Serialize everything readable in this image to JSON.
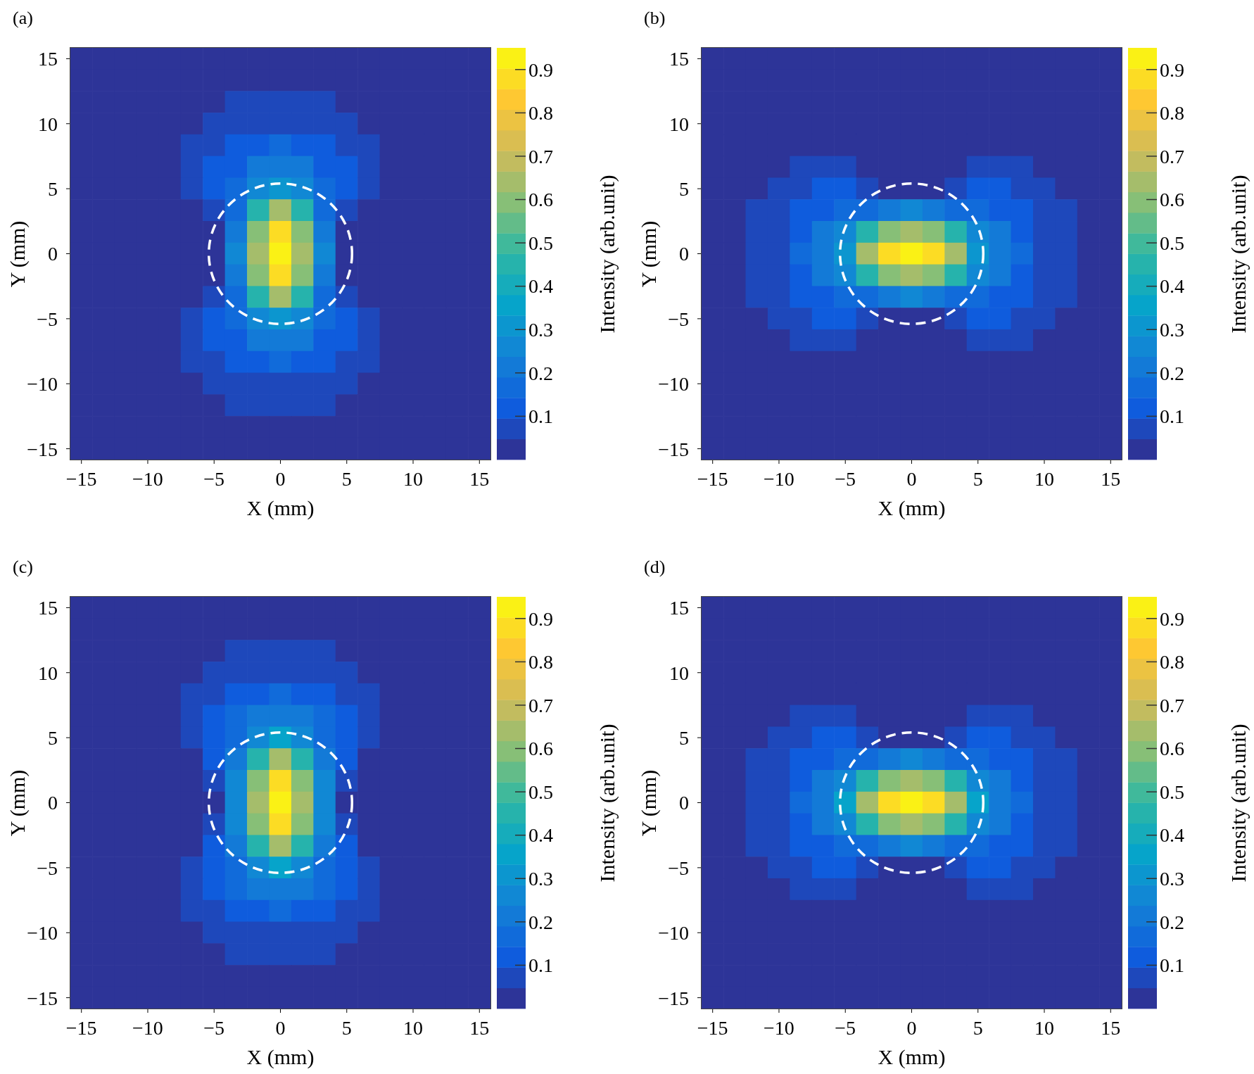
{
  "chart_data": [
    {
      "type": "heatmap",
      "title": "(a)",
      "xlabel": "X (mm)",
      "ylabel": "Y (mm)",
      "clabel": "Intensity (arb.unit)",
      "categories": [
        "−15",
        null,
        null,
        "−10",
        null,
        null,
        "−5",
        null,
        null,
        "0",
        null,
        null,
        "5",
        null,
        null,
        "10",
        null,
        null,
        "15"
      ],
      "y_categories": [
        "15",
        null,
        null,
        "10",
        null,
        null,
        "5",
        null,
        null,
        "0",
        null,
        null,
        "−5",
        null,
        null,
        "−10",
        null,
        null,
        "−15"
      ],
      "cells": [
        [
          0.02,
          0.02,
          0.02,
          0.02,
          0.02,
          0.02,
          0.02,
          0.02,
          0.02,
          0.02,
          0.02,
          0.02,
          0.02,
          0.02,
          0.02,
          0.02,
          0.02,
          0.02,
          0.02
        ],
        [
          0.02,
          0.02,
          0.02,
          0.02,
          0.02,
          0.02,
          0.02,
          0.02,
          0.02,
          0.02,
          0.02,
          0.02,
          0.02,
          0.02,
          0.02,
          0.02,
          0.02,
          0.02,
          0.02
        ],
        [
          0.02,
          0.02,
          0.02,
          0.02,
          0.02,
          0.02,
          0.02,
          0.05,
          0.06,
          0.06,
          0.06,
          0.05,
          0.02,
          0.02,
          0.02,
          0.02,
          0.02,
          0.02,
          0.02
        ],
        [
          0.02,
          0.02,
          0.02,
          0.02,
          0.02,
          0.02,
          0.06,
          0.08,
          0.09,
          0.09,
          0.09,
          0.08,
          0.06,
          0.02,
          0.02,
          0.02,
          0.02,
          0.02,
          0.02
        ],
        [
          0.02,
          0.02,
          0.02,
          0.02,
          0.02,
          0.06,
          0.08,
          0.11,
          0.14,
          0.15,
          0.14,
          0.11,
          0.08,
          0.06,
          0.02,
          0.02,
          0.02,
          0.02,
          0.02
        ],
        [
          0.02,
          0.02,
          0.02,
          0.02,
          0.02,
          0.06,
          0.1,
          0.14,
          0.19,
          0.21,
          0.19,
          0.14,
          0.1,
          0.06,
          0.02,
          0.02,
          0.02,
          0.02,
          0.02
        ],
        [
          0.02,
          0.02,
          0.02,
          0.02,
          0.02,
          0.05,
          0.1,
          0.16,
          0.25,
          0.33,
          0.25,
          0.16,
          0.1,
          0.05,
          0.02,
          0.02,
          0.02,
          0.02,
          0.02
        ],
        [
          0.02,
          0.02,
          0.02,
          0.02,
          0.02,
          0.02,
          0.09,
          0.18,
          0.45,
          0.63,
          0.45,
          0.18,
          0.09,
          0.02,
          0.02,
          0.02,
          0.02,
          0.02,
          0.02
        ],
        [
          0.02,
          0.02,
          0.02,
          0.02,
          0.02,
          0.02,
          0.04,
          0.23,
          0.6,
          0.87,
          0.6,
          0.23,
          0.04,
          0.02,
          0.02,
          0.02,
          0.02,
          0.02,
          0.02
        ],
        [
          0.02,
          0.02,
          0.02,
          0.02,
          0.02,
          0.02,
          0.03,
          0.25,
          0.65,
          0.95,
          0.65,
          0.25,
          0.03,
          0.02,
          0.02,
          0.02,
          0.02,
          0.02,
          0.02
        ],
        [
          0.02,
          0.02,
          0.02,
          0.02,
          0.02,
          0.02,
          0.04,
          0.23,
          0.6,
          0.87,
          0.6,
          0.23,
          0.04,
          0.02,
          0.02,
          0.02,
          0.02,
          0.02,
          0.02
        ],
        [
          0.02,
          0.02,
          0.02,
          0.02,
          0.02,
          0.02,
          0.09,
          0.18,
          0.45,
          0.63,
          0.45,
          0.18,
          0.09,
          0.02,
          0.02,
          0.02,
          0.02,
          0.02,
          0.02
        ],
        [
          0.02,
          0.02,
          0.02,
          0.02,
          0.02,
          0.05,
          0.1,
          0.16,
          0.25,
          0.33,
          0.25,
          0.16,
          0.1,
          0.05,
          0.02,
          0.02,
          0.02,
          0.02,
          0.02
        ],
        [
          0.02,
          0.02,
          0.02,
          0.02,
          0.02,
          0.06,
          0.1,
          0.14,
          0.19,
          0.21,
          0.19,
          0.14,
          0.1,
          0.06,
          0.02,
          0.02,
          0.02,
          0.02,
          0.02
        ],
        [
          0.02,
          0.02,
          0.02,
          0.02,
          0.02,
          0.06,
          0.08,
          0.11,
          0.14,
          0.15,
          0.14,
          0.11,
          0.08,
          0.06,
          0.02,
          0.02,
          0.02,
          0.02,
          0.02
        ],
        [
          0.02,
          0.02,
          0.02,
          0.02,
          0.02,
          0.02,
          0.06,
          0.08,
          0.09,
          0.09,
          0.09,
          0.08,
          0.06,
          0.02,
          0.02,
          0.02,
          0.02,
          0.02,
          0.02
        ],
        [
          0.02,
          0.02,
          0.02,
          0.02,
          0.02,
          0.02,
          0.02,
          0.05,
          0.06,
          0.06,
          0.06,
          0.05,
          0.02,
          0.02,
          0.02,
          0.02,
          0.02,
          0.02,
          0.02
        ],
        [
          0.02,
          0.02,
          0.02,
          0.02,
          0.02,
          0.02,
          0.02,
          0.02,
          0.02,
          0.02,
          0.02,
          0.02,
          0.02,
          0.02,
          0.02,
          0.02,
          0.02,
          0.02,
          0.02
        ],
        [
          0.02,
          0.02,
          0.02,
          0.02,
          0.02,
          0.02,
          0.02,
          0.02,
          0.02,
          0.02,
          0.02,
          0.02,
          0.02,
          0.02,
          0.02,
          0.02,
          0.02,
          0.02,
          0.02
        ]
      ],
      "clim": [
        0,
        0.95
      ],
      "cticks": [
        0.1,
        0.2,
        0.3,
        0.4,
        0.5,
        0.6,
        0.7,
        0.8,
        0.9
      ]
    },
    {
      "type": "heatmap",
      "title": "(b)",
      "xlabel": "X (mm)",
      "ylabel": "Y (mm)",
      "clabel": "Intensity (arb.unit)",
      "categories": [
        "−15",
        null,
        null,
        "−10",
        null,
        null,
        "−5",
        null,
        null,
        "0",
        null,
        null,
        "5",
        null,
        null,
        "10",
        null,
        null,
        "15"
      ],
      "y_categories": [
        "15",
        null,
        null,
        "10",
        null,
        null,
        "5",
        null,
        null,
        "0",
        null,
        null,
        "−5",
        null,
        null,
        "−10",
        null,
        null,
        "−15"
      ],
      "cells": [
        [
          0.02,
          0.02,
          0.02,
          0.02,
          0.02,
          0.02,
          0.02,
          0.02,
          0.02,
          0.02,
          0.02,
          0.02,
          0.02,
          0.02,
          0.02,
          0.02,
          0.02,
          0.02,
          0.02
        ],
        [
          0.02,
          0.02,
          0.02,
          0.02,
          0.02,
          0.02,
          0.02,
          0.02,
          0.02,
          0.02,
          0.02,
          0.02,
          0.02,
          0.02,
          0.02,
          0.02,
          0.02,
          0.02,
          0.02
        ],
        [
          0.02,
          0.02,
          0.02,
          0.02,
          0.02,
          0.02,
          0.02,
          0.02,
          0.02,
          0.02,
          0.02,
          0.02,
          0.02,
          0.02,
          0.02,
          0.02,
          0.02,
          0.02,
          0.02
        ],
        [
          0.02,
          0.02,
          0.02,
          0.02,
          0.02,
          0.02,
          0.02,
          0.02,
          0.02,
          0.02,
          0.02,
          0.02,
          0.02,
          0.02,
          0.02,
          0.02,
          0.02,
          0.02,
          0.02
        ],
        [
          0.02,
          0.02,
          0.02,
          0.02,
          0.02,
          0.02,
          0.02,
          0.02,
          0.02,
          0.02,
          0.02,
          0.02,
          0.02,
          0.02,
          0.02,
          0.02,
          0.02,
          0.02,
          0.02
        ],
        [
          0.02,
          0.02,
          0.02,
          0.02,
          0.06,
          0.06,
          0.05,
          0.02,
          0.02,
          0.02,
          0.02,
          0.02,
          0.05,
          0.06,
          0.06,
          0.02,
          0.02,
          0.02,
          0.02
        ],
        [
          0.02,
          0.02,
          0.02,
          0.06,
          0.08,
          0.1,
          0.1,
          0.09,
          0.04,
          0.03,
          0.04,
          0.09,
          0.1,
          0.1,
          0.08,
          0.06,
          0.02,
          0.02,
          0.02
        ],
        [
          0.02,
          0.02,
          0.05,
          0.08,
          0.11,
          0.14,
          0.16,
          0.18,
          0.23,
          0.25,
          0.23,
          0.18,
          0.16,
          0.14,
          0.11,
          0.08,
          0.05,
          0.02,
          0.02
        ],
        [
          0.02,
          0.02,
          0.06,
          0.09,
          0.14,
          0.19,
          0.25,
          0.45,
          0.6,
          0.65,
          0.6,
          0.45,
          0.25,
          0.19,
          0.14,
          0.09,
          0.06,
          0.02,
          0.02
        ],
        [
          0.02,
          0.02,
          0.06,
          0.09,
          0.15,
          0.21,
          0.33,
          0.63,
          0.87,
          0.95,
          0.87,
          0.63,
          0.33,
          0.21,
          0.15,
          0.09,
          0.06,
          0.02,
          0.02
        ],
        [
          0.02,
          0.02,
          0.06,
          0.09,
          0.14,
          0.19,
          0.25,
          0.45,
          0.6,
          0.65,
          0.6,
          0.45,
          0.25,
          0.19,
          0.14,
          0.09,
          0.06,
          0.02,
          0.02
        ],
        [
          0.02,
          0.02,
          0.05,
          0.08,
          0.11,
          0.14,
          0.16,
          0.18,
          0.23,
          0.25,
          0.23,
          0.18,
          0.16,
          0.14,
          0.11,
          0.08,
          0.05,
          0.02,
          0.02
        ],
        [
          0.02,
          0.02,
          0.02,
          0.06,
          0.08,
          0.1,
          0.1,
          0.09,
          0.04,
          0.03,
          0.04,
          0.09,
          0.1,
          0.1,
          0.08,
          0.06,
          0.02,
          0.02,
          0.02
        ],
        [
          0.02,
          0.02,
          0.02,
          0.02,
          0.06,
          0.06,
          0.05,
          0.02,
          0.02,
          0.02,
          0.02,
          0.02,
          0.05,
          0.06,
          0.06,
          0.02,
          0.02,
          0.02,
          0.02
        ],
        [
          0.02,
          0.02,
          0.02,
          0.02,
          0.02,
          0.02,
          0.02,
          0.02,
          0.02,
          0.02,
          0.02,
          0.02,
          0.02,
          0.02,
          0.02,
          0.02,
          0.02,
          0.02,
          0.02
        ],
        [
          0.02,
          0.02,
          0.02,
          0.02,
          0.02,
          0.02,
          0.02,
          0.02,
          0.02,
          0.02,
          0.02,
          0.02,
          0.02,
          0.02,
          0.02,
          0.02,
          0.02,
          0.02,
          0.02
        ],
        [
          0.02,
          0.02,
          0.02,
          0.02,
          0.02,
          0.02,
          0.02,
          0.02,
          0.02,
          0.02,
          0.02,
          0.02,
          0.02,
          0.02,
          0.02,
          0.02,
          0.02,
          0.02,
          0.02
        ],
        [
          0.02,
          0.02,
          0.02,
          0.02,
          0.02,
          0.02,
          0.02,
          0.02,
          0.02,
          0.02,
          0.02,
          0.02,
          0.02,
          0.02,
          0.02,
          0.02,
          0.02,
          0.02,
          0.02
        ],
        [
          0.02,
          0.02,
          0.02,
          0.02,
          0.02,
          0.02,
          0.02,
          0.02,
          0.02,
          0.02,
          0.02,
          0.02,
          0.02,
          0.02,
          0.02,
          0.02,
          0.02,
          0.02,
          0.02
        ]
      ],
      "clim": [
        0,
        0.95
      ],
      "cticks": [
        0.1,
        0.2,
        0.3,
        0.4,
        0.5,
        0.6,
        0.7,
        0.8,
        0.9
      ]
    },
    {
      "type": "heatmap",
      "title": "(c)",
      "xlabel": "X (mm)",
      "ylabel": "Y (mm)",
      "clabel": "Intensity (arb.unit)",
      "categories": [
        "−15",
        null,
        null,
        "−10",
        null,
        null,
        "−5",
        null,
        null,
        "0",
        null,
        null,
        "5",
        null,
        null,
        "10",
        null,
        null,
        "15"
      ],
      "y_categories": [
        "15",
        null,
        null,
        "10",
        null,
        null,
        "5",
        null,
        null,
        "0",
        null,
        null,
        "−5",
        null,
        null,
        "−10",
        null,
        null,
        "−15"
      ],
      "cells": [
        [
          0.02,
          0.02,
          0.02,
          0.02,
          0.02,
          0.02,
          0.02,
          0.02,
          0.02,
          0.02,
          0.02,
          0.02,
          0.02,
          0.02,
          0.02,
          0.02,
          0.02,
          0.02,
          0.02
        ],
        [
          0.02,
          0.02,
          0.02,
          0.02,
          0.02,
          0.02,
          0.02,
          0.02,
          0.02,
          0.02,
          0.02,
          0.02,
          0.02,
          0.02,
          0.02,
          0.02,
          0.02,
          0.02,
          0.02
        ],
        [
          0.02,
          0.02,
          0.02,
          0.02,
          0.02,
          0.02,
          0.03,
          0.05,
          0.06,
          0.06,
          0.06,
          0.05,
          0.03,
          0.02,
          0.02,
          0.02,
          0.02,
          0.02,
          0.02
        ],
        [
          0.02,
          0.02,
          0.02,
          0.02,
          0.02,
          0.03,
          0.07,
          0.09,
          0.09,
          0.09,
          0.09,
          0.09,
          0.07,
          0.03,
          0.02,
          0.02,
          0.02,
          0.02,
          0.02
        ],
        [
          0.02,
          0.02,
          0.02,
          0.02,
          0.02,
          0.06,
          0.09,
          0.12,
          0.14,
          0.15,
          0.14,
          0.12,
          0.09,
          0.06,
          0.02,
          0.02,
          0.02,
          0.02,
          0.02
        ],
        [
          0.02,
          0.02,
          0.02,
          0.02,
          0.02,
          0.07,
          0.11,
          0.15,
          0.2,
          0.22,
          0.2,
          0.15,
          0.11,
          0.07,
          0.02,
          0.02,
          0.02,
          0.02,
          0.02
        ],
        [
          0.02,
          0.02,
          0.02,
          0.02,
          0.02,
          0.06,
          0.11,
          0.17,
          0.26,
          0.34,
          0.26,
          0.17,
          0.11,
          0.06,
          0.02,
          0.02,
          0.02,
          0.02,
          0.02
        ],
        [
          0.02,
          0.02,
          0.02,
          0.02,
          0.02,
          0.02,
          0.1,
          0.19,
          0.46,
          0.64,
          0.46,
          0.19,
          0.1,
          0.02,
          0.02,
          0.02,
          0.02,
          0.02,
          0.02
        ],
        [
          0.02,
          0.02,
          0.02,
          0.02,
          0.02,
          0.02,
          0.05,
          0.24,
          0.61,
          0.87,
          0.61,
          0.24,
          0.05,
          0.02,
          0.02,
          0.02,
          0.02,
          0.02,
          0.02
        ],
        [
          0.02,
          0.02,
          0.02,
          0.02,
          0.02,
          0.02,
          0.04,
          0.26,
          0.66,
          0.95,
          0.66,
          0.26,
          0.04,
          0.02,
          0.02,
          0.02,
          0.02,
          0.02,
          0.02
        ],
        [
          0.02,
          0.02,
          0.02,
          0.02,
          0.02,
          0.02,
          0.05,
          0.24,
          0.61,
          0.87,
          0.61,
          0.24,
          0.05,
          0.02,
          0.02,
          0.02,
          0.02,
          0.02,
          0.02
        ],
        [
          0.02,
          0.02,
          0.02,
          0.02,
          0.02,
          0.02,
          0.1,
          0.19,
          0.46,
          0.64,
          0.46,
          0.19,
          0.1,
          0.02,
          0.02,
          0.02,
          0.02,
          0.02,
          0.02
        ],
        [
          0.02,
          0.02,
          0.02,
          0.02,
          0.02,
          0.06,
          0.11,
          0.17,
          0.26,
          0.34,
          0.26,
          0.17,
          0.11,
          0.06,
          0.02,
          0.02,
          0.02,
          0.02,
          0.02
        ],
        [
          0.02,
          0.02,
          0.02,
          0.02,
          0.02,
          0.07,
          0.11,
          0.15,
          0.2,
          0.22,
          0.2,
          0.15,
          0.11,
          0.07,
          0.02,
          0.02,
          0.02,
          0.02,
          0.02
        ],
        [
          0.02,
          0.02,
          0.02,
          0.02,
          0.02,
          0.06,
          0.09,
          0.12,
          0.14,
          0.15,
          0.14,
          0.12,
          0.09,
          0.06,
          0.02,
          0.02,
          0.02,
          0.02,
          0.02
        ],
        [
          0.02,
          0.02,
          0.02,
          0.02,
          0.02,
          0.03,
          0.07,
          0.09,
          0.09,
          0.09,
          0.09,
          0.09,
          0.07,
          0.03,
          0.02,
          0.02,
          0.02,
          0.02,
          0.02
        ],
        [
          0.02,
          0.02,
          0.02,
          0.02,
          0.02,
          0.02,
          0.03,
          0.05,
          0.06,
          0.06,
          0.06,
          0.05,
          0.03,
          0.02,
          0.02,
          0.02,
          0.02,
          0.02,
          0.02
        ],
        [
          0.02,
          0.02,
          0.02,
          0.02,
          0.02,
          0.02,
          0.02,
          0.02,
          0.02,
          0.02,
          0.02,
          0.02,
          0.02,
          0.02,
          0.02,
          0.02,
          0.02,
          0.02,
          0.02
        ],
        [
          0.02,
          0.02,
          0.02,
          0.02,
          0.02,
          0.02,
          0.02,
          0.02,
          0.02,
          0.02,
          0.02,
          0.02,
          0.02,
          0.02,
          0.02,
          0.02,
          0.02,
          0.02,
          0.02
        ]
      ],
      "clim": [
        0,
        0.95
      ],
      "cticks": [
        0.1,
        0.2,
        0.3,
        0.4,
        0.5,
        0.6,
        0.7,
        0.8,
        0.9
      ]
    },
    {
      "type": "heatmap",
      "title": "(d)",
      "xlabel": "X (mm)",
      "ylabel": "Y (mm)",
      "clabel": "Intensity (arb.unit)",
      "categories": [
        "−15",
        null,
        null,
        "−10",
        null,
        null,
        "−5",
        null,
        null,
        "0",
        null,
        null,
        "5",
        null,
        null,
        "10",
        null,
        null,
        "15"
      ],
      "y_categories": [
        "15",
        null,
        null,
        "10",
        null,
        null,
        "5",
        null,
        null,
        "0",
        null,
        null,
        "−5",
        null,
        null,
        "−10",
        null,
        null,
        "−15"
      ],
      "cells": [
        [
          0.02,
          0.02,
          0.02,
          0.02,
          0.02,
          0.02,
          0.02,
          0.02,
          0.02,
          0.02,
          0.02,
          0.02,
          0.02,
          0.02,
          0.02,
          0.02,
          0.02,
          0.02,
          0.02
        ],
        [
          0.02,
          0.02,
          0.02,
          0.02,
          0.02,
          0.02,
          0.02,
          0.02,
          0.02,
          0.02,
          0.02,
          0.02,
          0.02,
          0.02,
          0.02,
          0.02,
          0.02,
          0.02,
          0.02
        ],
        [
          0.02,
          0.02,
          0.02,
          0.02,
          0.02,
          0.02,
          0.02,
          0.02,
          0.02,
          0.02,
          0.02,
          0.02,
          0.02,
          0.02,
          0.02,
          0.02,
          0.02,
          0.02,
          0.02
        ],
        [
          0.02,
          0.02,
          0.02,
          0.02,
          0.02,
          0.02,
          0.02,
          0.02,
          0.02,
          0.02,
          0.02,
          0.02,
          0.02,
          0.02,
          0.02,
          0.02,
          0.02,
          0.02,
          0.02
        ],
        [
          0.02,
          0.02,
          0.02,
          0.02,
          0.02,
          0.02,
          0.02,
          0.02,
          0.02,
          0.02,
          0.02,
          0.02,
          0.02,
          0.02,
          0.02,
          0.02,
          0.02,
          0.02,
          0.02
        ],
        [
          0.02,
          0.02,
          0.02,
          0.02,
          0.05,
          0.05,
          0.05,
          0.02,
          0.02,
          0.02,
          0.02,
          0.02,
          0.05,
          0.05,
          0.05,
          0.02,
          0.02,
          0.02,
          0.02
        ],
        [
          0.02,
          0.02,
          0.02,
          0.06,
          0.08,
          0.1,
          0.1,
          0.08,
          0.04,
          0.03,
          0.04,
          0.08,
          0.1,
          0.1,
          0.08,
          0.06,
          0.02,
          0.02,
          0.02
        ],
        [
          0.02,
          0.02,
          0.05,
          0.08,
          0.11,
          0.14,
          0.16,
          0.18,
          0.23,
          0.25,
          0.23,
          0.18,
          0.16,
          0.14,
          0.11,
          0.08,
          0.05,
          0.02,
          0.02
        ],
        [
          0.02,
          0.02,
          0.06,
          0.09,
          0.14,
          0.19,
          0.26,
          0.46,
          0.6,
          0.65,
          0.6,
          0.46,
          0.26,
          0.19,
          0.14,
          0.09,
          0.06,
          0.02,
          0.02
        ],
        [
          0.02,
          0.02,
          0.06,
          0.09,
          0.15,
          0.21,
          0.34,
          0.64,
          0.87,
          0.95,
          0.87,
          0.64,
          0.34,
          0.21,
          0.15,
          0.09,
          0.06,
          0.02,
          0.02
        ],
        [
          0.02,
          0.02,
          0.06,
          0.09,
          0.14,
          0.19,
          0.26,
          0.46,
          0.6,
          0.65,
          0.6,
          0.46,
          0.26,
          0.19,
          0.14,
          0.09,
          0.06,
          0.02,
          0.02
        ],
        [
          0.02,
          0.02,
          0.05,
          0.08,
          0.11,
          0.14,
          0.16,
          0.18,
          0.23,
          0.25,
          0.23,
          0.18,
          0.16,
          0.14,
          0.11,
          0.08,
          0.05,
          0.02,
          0.02
        ],
        [
          0.02,
          0.02,
          0.02,
          0.06,
          0.08,
          0.1,
          0.1,
          0.08,
          0.04,
          0.03,
          0.04,
          0.08,
          0.1,
          0.1,
          0.08,
          0.06,
          0.02,
          0.02,
          0.02
        ],
        [
          0.02,
          0.02,
          0.02,
          0.02,
          0.05,
          0.05,
          0.05,
          0.02,
          0.02,
          0.02,
          0.02,
          0.02,
          0.05,
          0.05,
          0.05,
          0.02,
          0.02,
          0.02,
          0.02
        ],
        [
          0.02,
          0.02,
          0.02,
          0.02,
          0.02,
          0.02,
          0.02,
          0.02,
          0.02,
          0.02,
          0.02,
          0.02,
          0.02,
          0.02,
          0.02,
          0.02,
          0.02,
          0.02,
          0.02
        ],
        [
          0.02,
          0.02,
          0.02,
          0.02,
          0.02,
          0.02,
          0.02,
          0.02,
          0.02,
          0.02,
          0.02,
          0.02,
          0.02,
          0.02,
          0.02,
          0.02,
          0.02,
          0.02,
          0.02
        ],
        [
          0.02,
          0.02,
          0.02,
          0.02,
          0.02,
          0.02,
          0.02,
          0.02,
          0.02,
          0.02,
          0.02,
          0.02,
          0.02,
          0.02,
          0.02,
          0.02,
          0.02,
          0.02,
          0.02
        ],
        [
          0.02,
          0.02,
          0.02,
          0.02,
          0.02,
          0.02,
          0.02,
          0.02,
          0.02,
          0.02,
          0.02,
          0.02,
          0.02,
          0.02,
          0.02,
          0.02,
          0.02,
          0.02,
          0.02
        ],
        [
          0.02,
          0.02,
          0.02,
          0.02,
          0.02,
          0.02,
          0.02,
          0.02,
          0.02,
          0.02,
          0.02,
          0.02,
          0.02,
          0.02,
          0.02,
          0.02,
          0.02,
          0.02,
          0.02
        ]
      ],
      "clim": [
        0,
        0.95
      ],
      "cticks": [
        0.1,
        0.2,
        0.3,
        0.4,
        0.5,
        0.6,
        0.7,
        0.8,
        0.9
      ]
    }
  ]
}
